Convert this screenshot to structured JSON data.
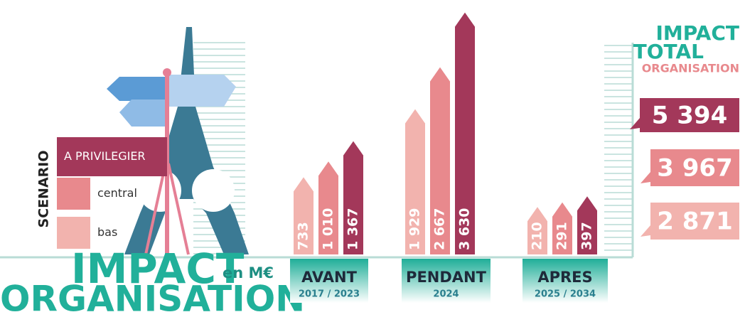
{
  "header": {
    "title_line1": "IMPACT",
    "title_line2": "ORGANISATION",
    "unit": "en M€"
  },
  "legend": {
    "title": "SCENARIO"
  },
  "chart_data": {
    "type": "bar",
    "categories": [
      "AVANT",
      "PENDANT",
      "APRES"
    ],
    "category_periods": [
      "2017 / 2023",
      "2024",
      "2025 / 2034"
    ],
    "series": [
      {
        "name": "bas",
        "color": "#f2b3ae",
        "values": [
          733,
          1929,
          210
        ],
        "value_labels": [
          "733",
          "1 929",
          "210"
        ]
      },
      {
        "name": "central",
        "color": "#e8898d",
        "values": [
          1010,
          2667,
          291
        ],
        "value_labels": [
          "1 010",
          "2 667",
          "291"
        ]
      },
      {
        "name": "A PRIVILEGIER",
        "color": "#a3385a",
        "values": [
          1367,
          3630,
          397
        ],
        "value_labels": [
          "1 367",
          "3 630",
          "397"
        ]
      }
    ]
  },
  "totals": {
    "title_line1": "IMPACT",
    "title_line2": "TOTAL",
    "title_line3": "ORGANISATION",
    "values": [
      5394,
      3967,
      2871
    ],
    "value_labels": [
      "5 394",
      "3 967",
      "2 871"
    ],
    "colors": [
      "#a3385a",
      "#e8898d",
      "#f2b3ae"
    ]
  }
}
